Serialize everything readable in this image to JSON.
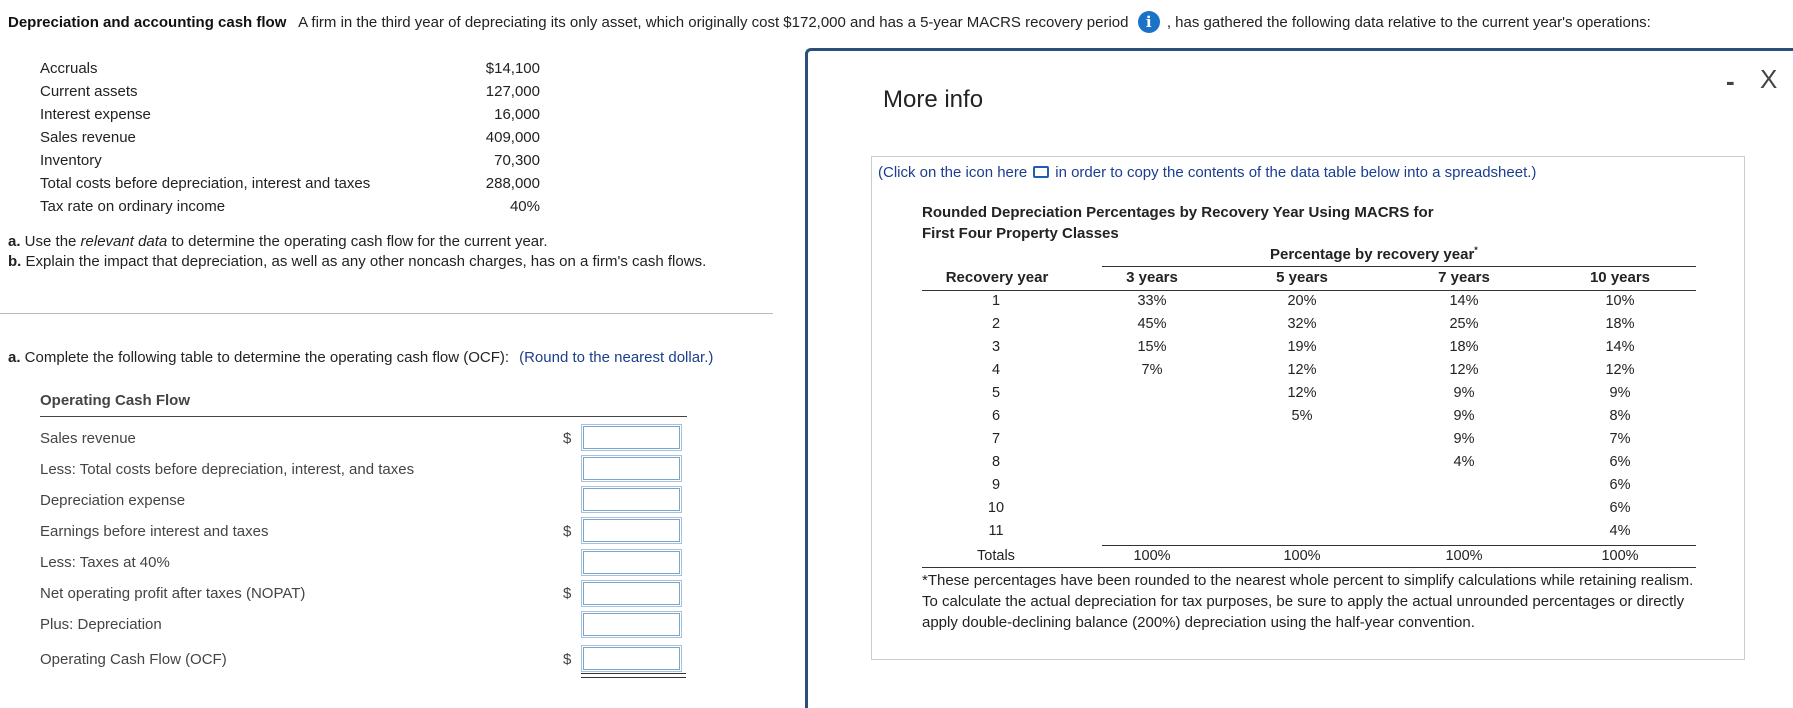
{
  "header": {
    "bold_title": "Depreciation and accounting cash flow",
    "text_before_icon": "A firm in the third year of depreciating its only asset, which originally cost $172,000 and has a 5-year MACRS recovery period",
    "text_after_icon": ", has gathered the following data relative to the current year's operations:",
    "info_icon": "i"
  },
  "given_data": [
    {
      "label": "Accruals",
      "value": "$14,100"
    },
    {
      "label": "Current assets",
      "value": "127,000"
    },
    {
      "label": "Interest expense",
      "value": "16,000"
    },
    {
      "label": "Sales revenue",
      "value": "409,000"
    },
    {
      "label": "Inventory",
      "value": "70,300"
    },
    {
      "label": "Total costs before depreciation, interest and taxes",
      "value": "288,000"
    },
    {
      "label": "Tax rate on ordinary income",
      "value": "40%"
    }
  ],
  "questions": {
    "a_prefix": "a.",
    "a_text_1": " Use the ",
    "a_italic": "relevant data",
    "a_text_2": " to determine the operating cash flow for the current year.",
    "b_prefix": "b.",
    "b_text": " Explain the impact that depreciation, as well as any other noncash charges, has on a firm's cash flows."
  },
  "part_a": {
    "prefix": "a.",
    "text": " Complete the following table to determine the operating cash flow (OCF):",
    "hint": "(Round to the nearest dollar.)"
  },
  "ocf_table": {
    "title": "Operating Cash Flow",
    "rows": [
      {
        "label": "Sales revenue",
        "dollar": "$",
        "value": ""
      },
      {
        "label": "Less: Total costs before depreciation, interest, and taxes",
        "dollar": "",
        "value": ""
      },
      {
        "label": "Depreciation expense",
        "dollar": "",
        "value": ""
      },
      {
        "label": "Earnings before interest and taxes",
        "dollar": "$",
        "value": ""
      },
      {
        "label": "Less: Taxes at 40%",
        "dollar": "",
        "value": ""
      },
      {
        "label": "Net operating profit after taxes (NOPAT)",
        "dollar": "$",
        "value": ""
      },
      {
        "label": "Plus: Depreciation",
        "dollar": "",
        "value": ""
      },
      {
        "label": "Operating Cash Flow (OCF)",
        "dollar": "$",
        "value": ""
      }
    ]
  },
  "modal": {
    "title": "More info",
    "minimize": "-",
    "close": "X",
    "click_note_1": "(Click on the icon here",
    "click_note_2": "in order to copy the contents of the data table below into a spreadsheet.)",
    "table_title_1": "Rounded Depreciation Percentages by Recovery Year Using MACRS for",
    "table_title_2": "First Four Property Classes",
    "pct_header": "Percentage by recovery year",
    "pct_star": "*",
    "columns": [
      "Recovery year",
      "3 years",
      "5 years",
      "7 years",
      "10 years"
    ],
    "rows": [
      [
        "1",
        "33%",
        "20%",
        "14%",
        "10%"
      ],
      [
        "2",
        "45%",
        "32%",
        "25%",
        "18%"
      ],
      [
        "3",
        "15%",
        "19%",
        "18%",
        "14%"
      ],
      [
        "4",
        "7%",
        "12%",
        "12%",
        "12%"
      ],
      [
        "5",
        "",
        "12%",
        "9%",
        "9%"
      ],
      [
        "6",
        "",
        "5%",
        "9%",
        "8%"
      ],
      [
        "7",
        "",
        "",
        "9%",
        "7%"
      ],
      [
        "8",
        "",
        "",
        "4%",
        "6%"
      ],
      [
        "9",
        "",
        "",
        "",
        "6%"
      ],
      [
        "10",
        "",
        "",
        "",
        "6%"
      ],
      [
        "11",
        "",
        "",
        "",
        "4%"
      ]
    ],
    "totals": [
      "Totals",
      "100%",
      "100%",
      "100%",
      "100%"
    ],
    "footnote": "*These percentages have been rounded to the nearest whole percent to simplify calculations while retaining realism. To calculate the actual depreciation for tax purposes, be sure to apply the actual unrounded percentages or directly apply double-declining balance (200%) depreciation using the half-year convention."
  }
}
